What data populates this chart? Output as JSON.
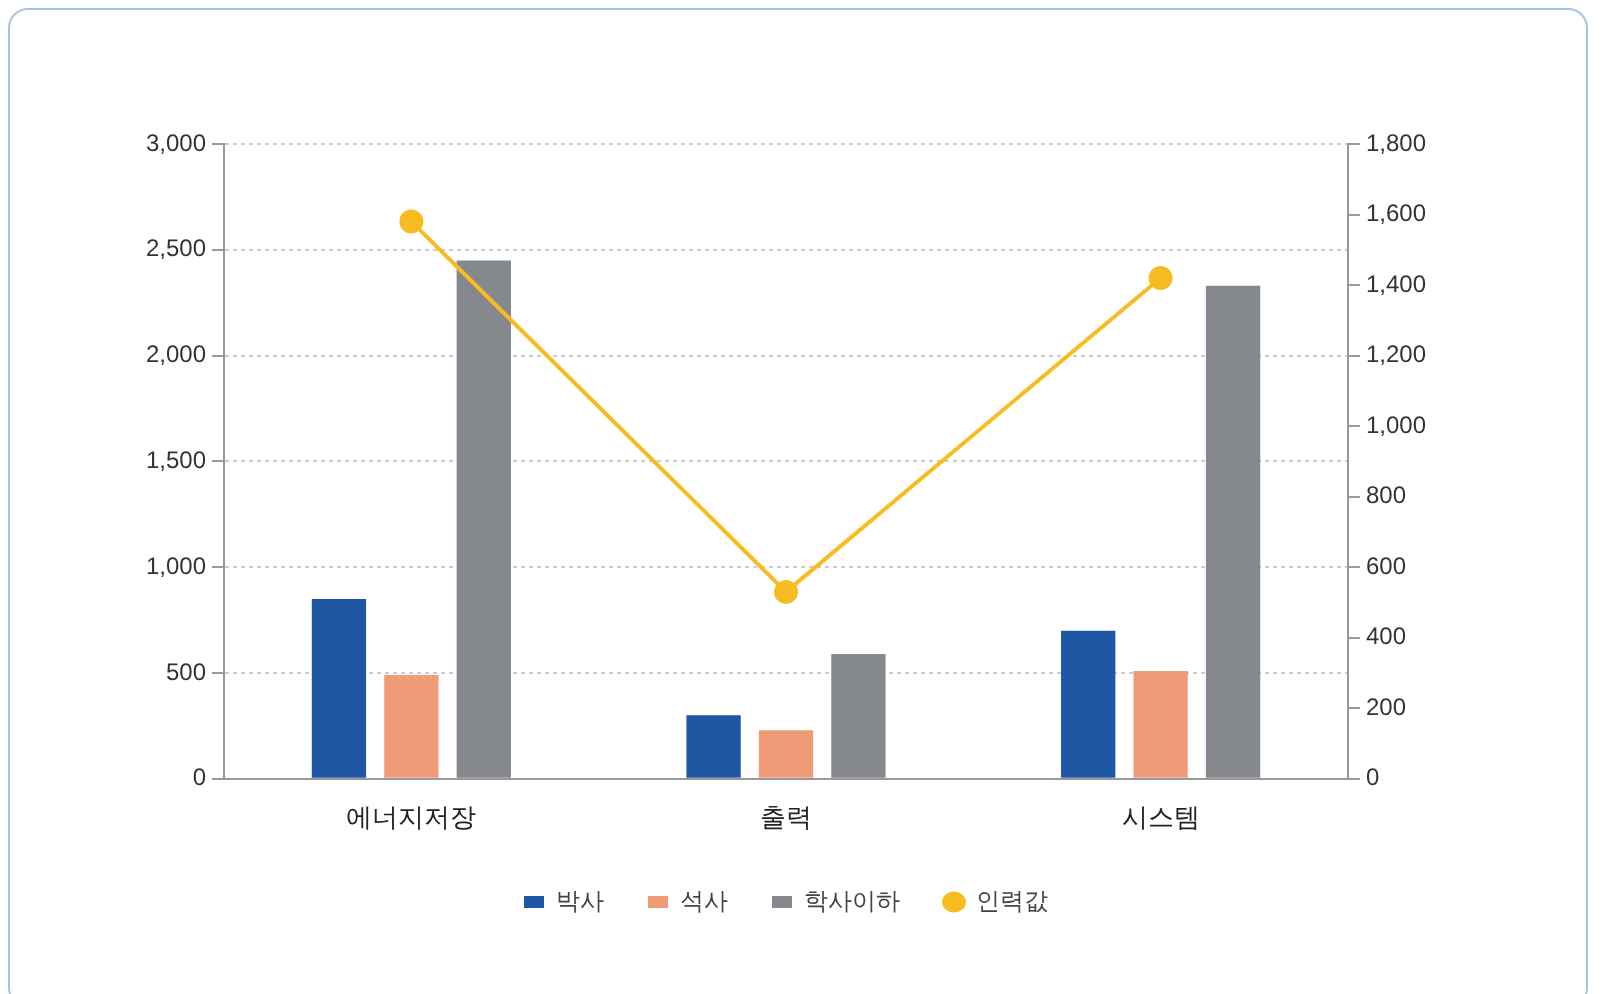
{
  "chart_data": {
    "type": "bar",
    "categories": [
      "에너지저장",
      "출력",
      "시스템"
    ],
    "series": [
      {
        "name": "박사",
        "color": "#1f57a5",
        "values": [
          850,
          300,
          700
        ]
      },
      {
        "name": "석사",
        "color": "#f09b78",
        "values": [
          490,
          230,
          510
        ]
      },
      {
        "name": "학사이하",
        "color": "#85888c",
        "values": [
          2450,
          590,
          2330
        ]
      },
      {
        "name": "인력값",
        "type": "line",
        "axis": "y2",
        "color": "#f7bc22",
        "values": [
          1580,
          530,
          1420
        ]
      }
    ],
    "ylim": [
      0,
      3000
    ],
    "yticks": [
      0,
      500,
      {
        "value": 1000,
        "label": "1,000"
      },
      {
        "value": 1500,
        "label": "1,500"
      },
      {
        "value": 2000,
        "label": "2,000"
      },
      {
        "value": 2500,
        "label": "2,500"
      },
      {
        "value": 3000,
        "label": "3,000"
      }
    ],
    "y2lim": [
      0,
      1800
    ],
    "y2ticks": [
      0,
      200,
      400,
      600,
      800,
      {
        "value": 1000,
        "label": "1,000"
      },
      {
        "value": 1200,
        "label": "1,200"
      },
      {
        "value": 1400,
        "label": "1,400"
      },
      {
        "value": 1600,
        "label": "1,600"
      },
      {
        "value": 1800,
        "label": "1,800"
      }
    ],
    "grid": "y",
    "legend": "bottom",
    "marker": "circle"
  }
}
